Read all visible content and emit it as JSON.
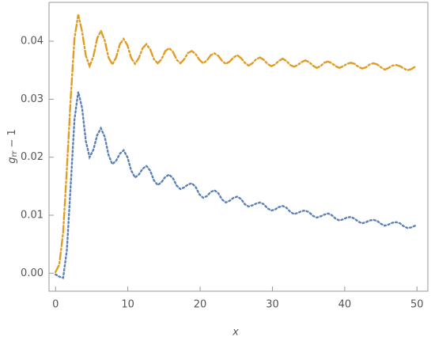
{
  "chart_data": {
    "type": "line",
    "xlabel": "x",
    "ylabel": {
      "text": "g",
      "subscript": "rr",
      "suffix": "− 1"
    },
    "xlim": [
      -0.9,
      51.5
    ],
    "ylim": [
      -0.0031,
      0.0467
    ],
    "xticks": [
      0,
      10,
      20,
      30,
      40,
      50
    ],
    "yticks": [
      {
        "value": 0,
        "label": "0.00"
      },
      0.01,
      0.02,
      0.03,
      0.04
    ],
    "grid": false,
    "x": [
      0,
      0.52,
      1.05,
      1.57,
      2.09,
      2.62,
      3.14,
      3.67,
      4.19,
      4.71,
      5.24,
      5.76,
      6.28,
      6.81,
      7.33,
      7.85,
      8.38,
      8.9,
      9.42,
      9.95,
      10.47,
      11.0,
      11.52,
      12.04,
      12.57,
      13.09,
      13.61,
      14.14,
      14.66,
      15.18,
      15.71,
      16.23,
      16.76,
      17.28,
      17.8,
      18.33,
      18.85,
      19.37,
      19.9,
      20.42,
      20.94,
      21.47,
      21.99,
      22.51,
      23.04,
      23.56,
      24.09,
      24.61,
      25.13,
      25.66,
      26.18,
      26.7,
      27.23,
      27.75,
      28.27,
      28.8,
      29.32,
      29.85,
      30.37,
      30.89,
      31.42,
      31.94,
      32.46,
      32.99,
      33.51,
      34.03,
      34.56,
      35.08,
      35.6,
      36.13,
      36.65,
      37.18,
      37.7,
      38.22,
      38.75,
      39.27,
      39.79,
      40.32,
      40.84,
      41.36,
      41.89,
      42.41,
      42.94,
      43.46,
      43.98,
      44.51,
      45.03,
      45.55,
      46.08,
      46.6,
      47.12,
      47.65,
      48.17,
      48.69,
      49.22,
      49.74
    ],
    "series": [
      {
        "color": "#e19c24",
        "dash": "dotdashed",
        "values": [
          0.0002,
          0.0015,
          0.007,
          0.018,
          0.03,
          0.0405,
          0.0446,
          0.0417,
          0.0375,
          0.0357,
          0.0374,
          0.0405,
          0.0418,
          0.0401,
          0.0372,
          0.036,
          0.0372,
          0.0395,
          0.0404,
          0.0393,
          0.0371,
          0.0361,
          0.0371,
          0.0388,
          0.0395,
          0.0386,
          0.0369,
          0.0362,
          0.0369,
          0.0383,
          0.0388,
          0.0382,
          0.0368,
          0.0362,
          0.0369,
          0.038,
          0.0383,
          0.0378,
          0.0368,
          0.0362,
          0.0367,
          0.0376,
          0.0379,
          0.0375,
          0.0366,
          0.0361,
          0.0365,
          0.0372,
          0.0376,
          0.0371,
          0.0363,
          0.0358,
          0.0362,
          0.0369,
          0.0372,
          0.0368,
          0.0361,
          0.0357,
          0.036,
          0.0366,
          0.037,
          0.0366,
          0.0359,
          0.0356,
          0.0359,
          0.0364,
          0.0367,
          0.0364,
          0.0358,
          0.0354,
          0.0357,
          0.0363,
          0.0365,
          0.0362,
          0.0357,
          0.0354,
          0.0357,
          0.0361,
          0.0363,
          0.0361,
          0.0356,
          0.0353,
          0.0355,
          0.036,
          0.0362,
          0.036,
          0.0355,
          0.0351,
          0.0354,
          0.0358,
          0.0359,
          0.0357,
          0.0353,
          0.035,
          0.0352,
          0.0356
        ]
      },
      {
        "color": "#5e81b5",
        "dash": "dotted",
        "values": [
          -0.0002,
          -0.0006,
          -0.0008,
          0.004,
          0.015,
          0.0265,
          0.0313,
          0.0285,
          0.0228,
          0.02,
          0.0213,
          0.0238,
          0.025,
          0.0235,
          0.0204,
          0.0188,
          0.0194,
          0.0206,
          0.0212,
          0.02,
          0.0177,
          0.0165,
          0.017,
          0.018,
          0.0185,
          0.0177,
          0.016,
          0.0152,
          0.0157,
          0.0166,
          0.017,
          0.0164,
          0.0151,
          0.0145,
          0.0148,
          0.0153,
          0.0155,
          0.0149,
          0.0136,
          0.013,
          0.0133,
          0.014,
          0.0143,
          0.0138,
          0.0127,
          0.0122,
          0.0125,
          0.013,
          0.0132,
          0.0128,
          0.0119,
          0.0115,
          0.0117,
          0.012,
          0.0122,
          0.0119,
          0.0112,
          0.0108,
          0.011,
          0.0114,
          0.0116,
          0.0113,
          0.0106,
          0.0102,
          0.0104,
          0.0107,
          0.0108,
          0.0105,
          0.0099,
          0.0096,
          0.0098,
          0.0101,
          0.0103,
          0.01,
          0.0094,
          0.0091,
          0.0093,
          0.0096,
          0.0097,
          0.0094,
          0.0089,
          0.0086,
          0.0088,
          0.0091,
          0.0092,
          0.009,
          0.0085,
          0.0082,
          0.0084,
          0.0087,
          0.0088,
          0.0086,
          0.0081,
          0.0078,
          0.0079,
          0.0082
        ]
      }
    ]
  }
}
